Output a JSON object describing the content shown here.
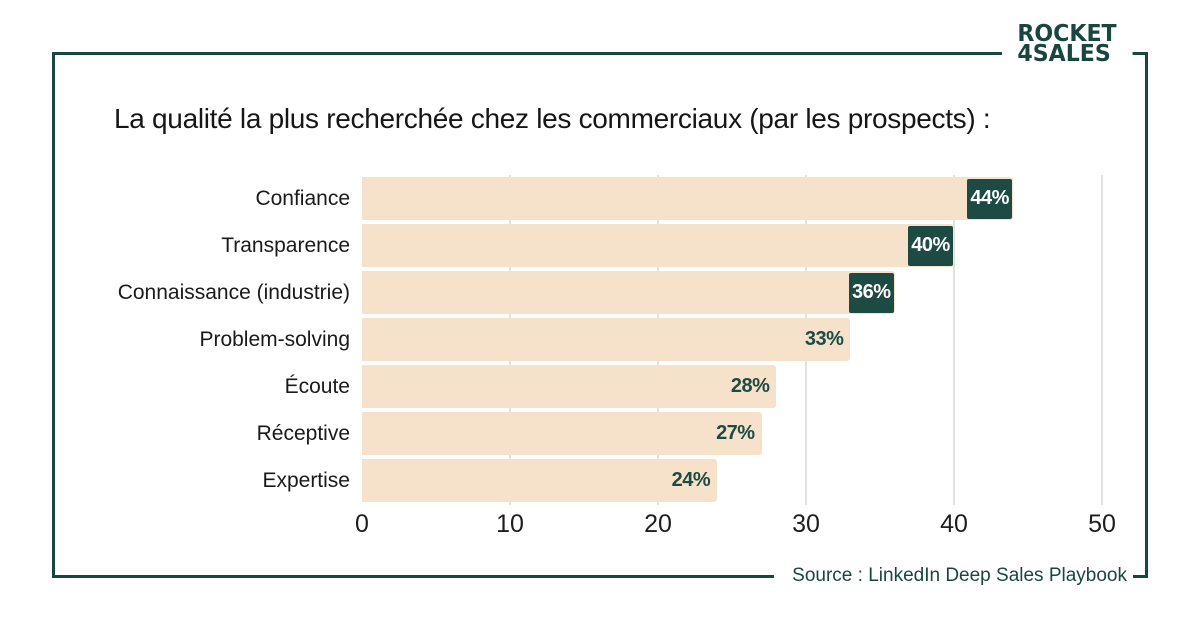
{
  "logo": {
    "line1": "ROCKET",
    "line2": "4SALES"
  },
  "title": "La qualité la plus recherchée chez les commerciaux (par les prospects) :",
  "source": "Source : LinkedIn Deep Sales Playbook",
  "colors": {
    "dark_green": "#1d4b43",
    "frame_green": "#19463f",
    "bar_beige": "#f6e2cb",
    "gridline": "#e3e2de",
    "text_dark": "#1a1a1a"
  },
  "chart_data": {
    "type": "bar",
    "orientation": "horizontal",
    "title": "La qualité la plus recherchée chez les commerciaux (par les prospects) :",
    "categories": [
      "Confiance",
      "Transparence",
      "Connaissance (industrie)",
      "Problem-solving",
      "Écoute",
      "Réceptive",
      "Expertise"
    ],
    "values": [
      44,
      40,
      36,
      33,
      28,
      27,
      24
    ],
    "value_labels": [
      "44%",
      "40%",
      "36%",
      "33%",
      "28%",
      "27%",
      "24%"
    ],
    "value_label_style": [
      "box",
      "box",
      "box",
      "inside-text",
      "inside-text",
      "inside-text",
      "inside-text"
    ],
    "xticks": [
      0,
      10,
      20,
      30,
      40,
      50
    ],
    "xlim": [
      0,
      50
    ],
    "grid": true,
    "legend": false,
    "source": "Source : LinkedIn Deep Sales Playbook"
  }
}
